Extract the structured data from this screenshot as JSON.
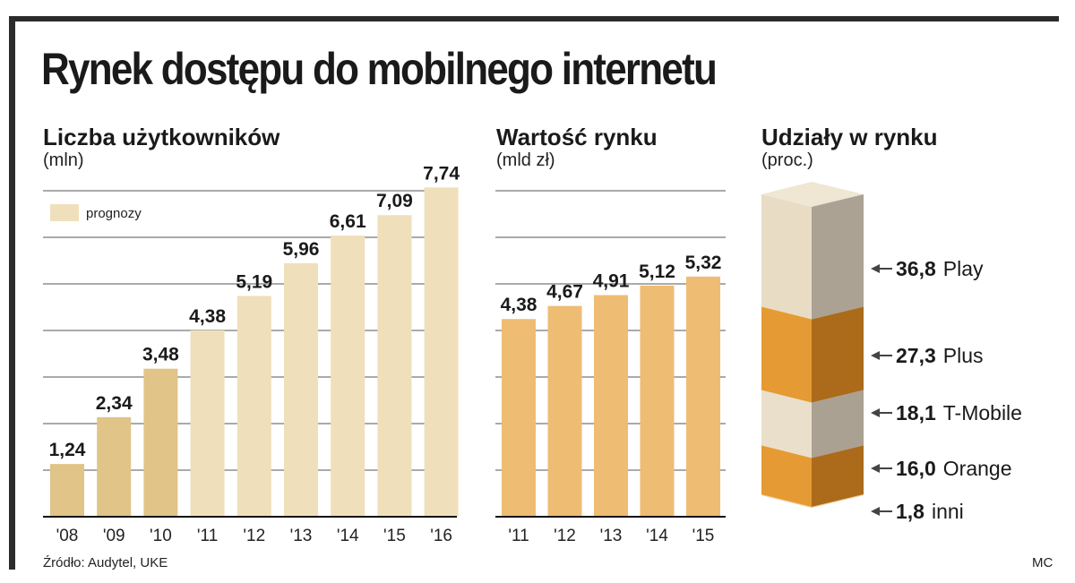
{
  "title": "Rynek dostępu do mobilnego internetu",
  "colors": {
    "historical": "#e0c488",
    "forecast": "#efe0bb",
    "value_bar": "#efbc74",
    "grid": "#555555",
    "play_front": "#e8dcc5",
    "play_side": "#aba293",
    "plus_front": "#e59a33",
    "plus_side": "#ab6b1b",
    "tmobile_front": "#e9dfcb",
    "tmobile_side": "#aaa192",
    "orange_front": "#e59a33",
    "orange_side": "#ab6b1b",
    "inni": "#f0c488"
  },
  "chart_data": [
    {
      "type": "bar",
      "title": "Liczba użytkowników",
      "unit": "(mln)",
      "categories": [
        "'08",
        "'09",
        "'10",
        "'11",
        "'12",
        "'13",
        "'14",
        "'15",
        "'16"
      ],
      "values": [
        1.24,
        2.34,
        3.48,
        4.38,
        5.19,
        5.96,
        6.61,
        7.09,
        7.74
      ],
      "labels": [
        "1,24",
        "2,34",
        "3,48",
        "4,38",
        "5,19",
        "5,96",
        "6,61",
        "7,09",
        "7,74"
      ],
      "forecast": [
        false,
        false,
        false,
        true,
        true,
        true,
        true,
        true,
        true
      ],
      "legend": "prognozy",
      "legend_position": "top-left",
      "ylim": [
        0,
        8
      ],
      "grid": true
    },
    {
      "type": "bar",
      "title": "Wartość rynku",
      "unit": "(mld zł)",
      "categories": [
        "'11",
        "'12",
        "'13",
        "'14",
        "'15"
      ],
      "values": [
        4.38,
        4.67,
        4.91,
        5.12,
        5.32
      ],
      "labels": [
        "4,38",
        "4,67",
        "4,91",
        "5,12",
        "5,32"
      ],
      "ylim": [
        0,
        7
      ],
      "grid": true
    },
    {
      "type": "bar",
      "style": "stacked-3d",
      "title": "Udziały w rynku",
      "unit": "(proc.)",
      "segments": [
        {
          "name": "Play",
          "value": 36.8,
          "label": "36,8"
        },
        {
          "name": "Plus",
          "value": 27.3,
          "label": "27,3"
        },
        {
          "name": "T-Mobile",
          "value": 18.1,
          "label": "18,1"
        },
        {
          "name": "Orange",
          "value": 16.0,
          "label": "16,0"
        },
        {
          "name": "inni",
          "value": 1.8,
          "label": "1,8"
        }
      ]
    }
  ],
  "footer": {
    "source": "Źródło: Audytel, UKE",
    "credit": "MC"
  }
}
